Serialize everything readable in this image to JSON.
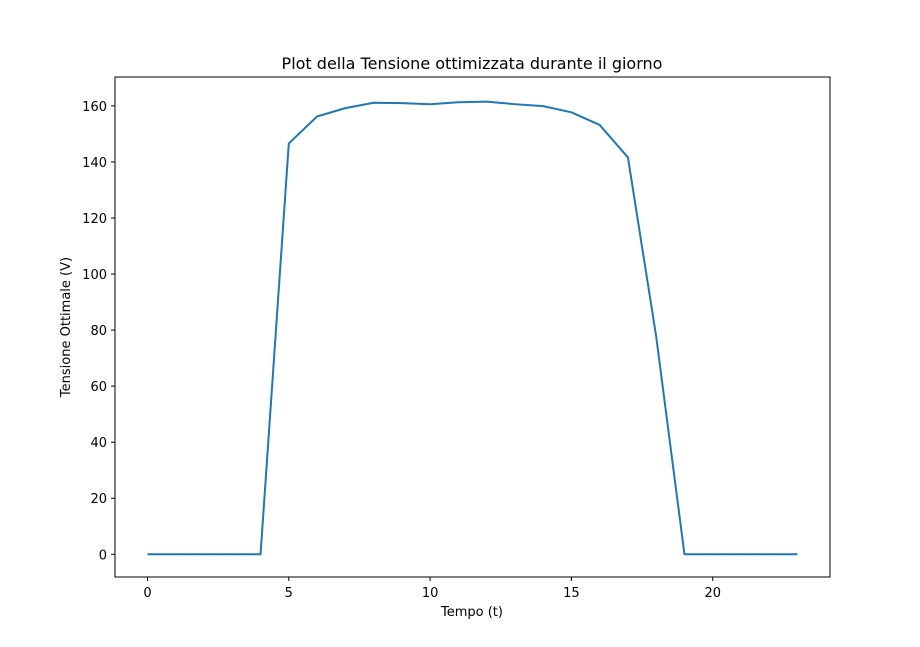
{
  "chart_data": {
    "type": "line",
    "title": "Plot della Tensione ottimizzata durante il giorno",
    "xlabel": "Tempo (t)",
    "ylabel": "Tensione Ottimale (V)",
    "xlim": [
      -1.15,
      24.15
    ],
    "ylim": [
      -8.1,
      170.3
    ],
    "xticks": [
      0,
      5,
      10,
      15,
      20
    ],
    "yticks": [
      0,
      20,
      40,
      60,
      80,
      100,
      120,
      140,
      160
    ],
    "grid": false,
    "legend": null,
    "series": [
      {
        "color": "#1f77b4",
        "x": [
          0,
          1,
          2,
          3,
          4,
          5,
          6,
          7,
          8,
          9,
          10,
          11,
          12,
          13,
          14,
          15,
          16,
          17,
          18,
          19,
          20,
          21,
          22,
          23
        ],
        "y": [
          0,
          0,
          0,
          0,
          0,
          146.6,
          156.2,
          159.2,
          161.1,
          161.0,
          160.6,
          161.3,
          161.5,
          160.6,
          159.9,
          157.7,
          153.2,
          141.6,
          77.7,
          0,
          0,
          0,
          0,
          0
        ]
      }
    ]
  }
}
